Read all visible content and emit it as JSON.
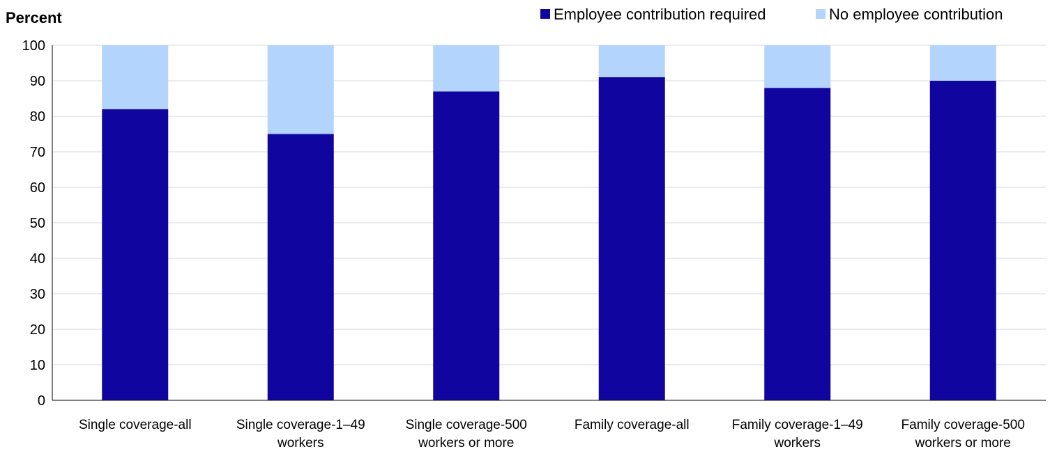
{
  "chart_data": {
    "type": "bar",
    "stacked": true,
    "ylabel": "Percent",
    "ylim": [
      0,
      100
    ],
    "yticks": [
      0,
      10,
      20,
      30,
      40,
      50,
      60,
      70,
      80,
      90,
      100
    ],
    "grid": true,
    "legend_position": "top-right",
    "categories": [
      [
        "Single coverage-all"
      ],
      [
        "Single coverage-1–49",
        "workers"
      ],
      [
        "Single coverage-500",
        "workers or more"
      ],
      [
        "Family coverage-all"
      ],
      [
        "Family coverage-1–49",
        "workers"
      ],
      [
        "Family coverage-500",
        "workers or more"
      ]
    ],
    "series": [
      {
        "name": "Employee contribution required",
        "color": "#10069F",
        "values": [
          82,
          75,
          87,
          91,
          88,
          90
        ]
      },
      {
        "name": "No employee contribution",
        "color": "#B3D4FD",
        "values": [
          18,
          25,
          13,
          9,
          12,
          10
        ]
      }
    ]
  }
}
